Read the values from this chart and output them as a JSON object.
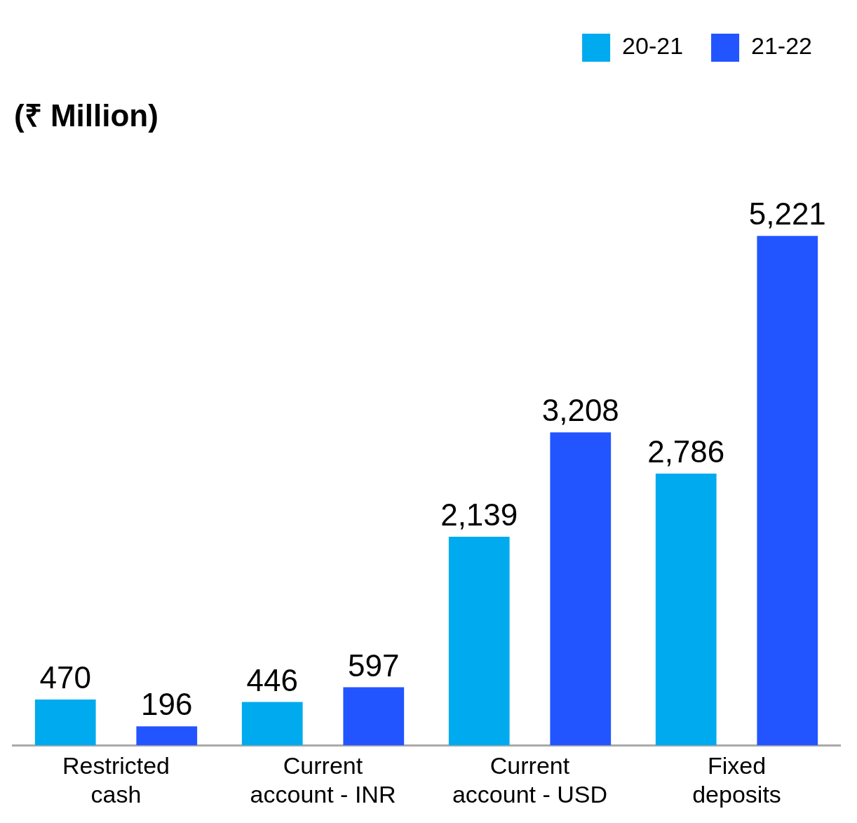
{
  "chart_data": {
    "type": "bar",
    "ylabel": "(₹ Million)",
    "categories": [
      "Restricted cash",
      "Current account - INR",
      "Current account - USD",
      "Fixed deposits"
    ],
    "series": [
      {
        "name": "20-21",
        "color": "#00aaee",
        "values": [
          470,
          446,
          2139,
          2786
        ],
        "value_labels": [
          "470",
          "446",
          "2,139",
          "2,786"
        ]
      },
      {
        "name": "21-22",
        "color": "#2255ff",
        "values": [
          196,
          597,
          3208,
          5221
        ],
        "value_labels": [
          "196",
          "597",
          "3,208",
          "5,221"
        ]
      }
    ],
    "legend": "top right",
    "grid": false
  }
}
